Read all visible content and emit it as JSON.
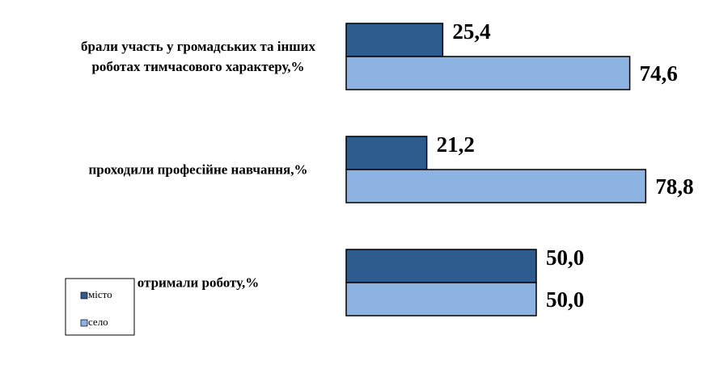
{
  "chart_data": {
    "type": "bar",
    "orientation": "horizontal",
    "categories": [
      "брали участь у громадських та інших роботах тимчасового характеру,%",
      "проходили професійне навчання,%",
      "отримали роботу,%"
    ],
    "series": [
      {
        "name": "місто",
        "color": "#2f5c8f",
        "values": [
          25.4,
          21.2,
          50.0
        ],
        "value_labels": [
          "25,4",
          "21,2",
          "50,0"
        ]
      },
      {
        "name": "село",
        "color": "#8db3e2",
        "values": [
          74.6,
          78.8,
          50.0
        ],
        "value_labels": [
          "74,6",
          "78,8",
          "50,0"
        ]
      }
    ],
    "legend": "bottom-left"
  }
}
